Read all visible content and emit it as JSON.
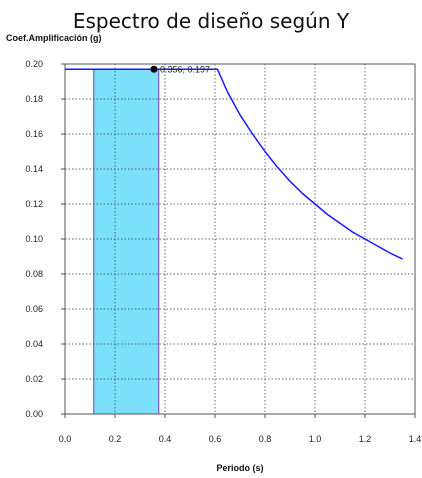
{
  "chart_data": {
    "type": "line",
    "title": "Espectro de diseño según Y",
    "ylabel": "Coef.Amplificación (g)",
    "xlabel": "Periodo (s)",
    "xlim": [
      0,
      1.4
    ],
    "ylim": [
      0,
      0.2
    ],
    "xticks": [
      "0.0",
      "0.2",
      "0.4",
      "0.6",
      "0.8",
      "1.0",
      "1.2",
      "1.4"
    ],
    "yticks": [
      "0.00",
      "0.02",
      "0.04",
      "0.06",
      "0.08",
      "0.10",
      "0.12",
      "0.14",
      "0.16",
      "0.18",
      "0.20"
    ],
    "grid": true,
    "series": [
      {
        "color": "#1a1aff",
        "x": [
          0.0,
          0.1,
          0.2,
          0.3,
          0.4,
          0.5,
          0.6,
          0.61,
          0.65,
          0.7,
          0.75,
          0.8,
          0.85,
          0.9,
          0.95,
          1.0,
          1.05,
          1.1,
          1.15,
          1.2,
          1.25,
          1.3,
          1.35
        ],
        "y": [
          0.197,
          0.197,
          0.197,
          0.197,
          0.197,
          0.197,
          0.197,
          0.197,
          0.184,
          0.171,
          0.16,
          0.15,
          0.141,
          0.133,
          0.126,
          0.12,
          0.114,
          0.109,
          0.104,
          0.1,
          0.096,
          0.092,
          0.0885
        ]
      }
    ],
    "shaded_region": {
      "x0": 0.115,
      "x1": 0.375,
      "y_top": 0.197,
      "color": "#7be0fb",
      "edge_color": "#7a3ea8"
    },
    "annotations": [
      {
        "x": 0.356,
        "y": 0.197,
        "text": "0.356, 0.197",
        "marker_color": "#000000"
      }
    ]
  }
}
